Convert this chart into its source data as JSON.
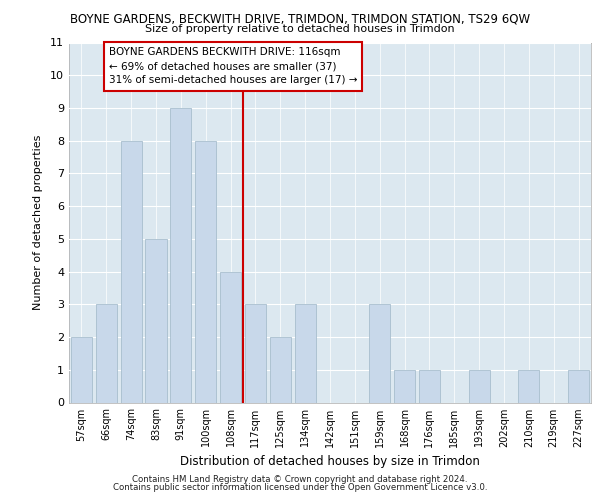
{
  "title1": "BOYNE GARDENS, BECKWITH DRIVE, TRIMDON, TRIMDON STATION, TS29 6QW",
  "title2": "Size of property relative to detached houses in Trimdon",
  "xlabel": "Distribution of detached houses by size in Trimdon",
  "ylabel": "Number of detached properties",
  "categories": [
    "57sqm",
    "66sqm",
    "74sqm",
    "83sqm",
    "91sqm",
    "100sqm",
    "108sqm",
    "117sqm",
    "125sqm",
    "134sqm",
    "142sqm",
    "151sqm",
    "159sqm",
    "168sqm",
    "176sqm",
    "185sqm",
    "193sqm",
    "202sqm",
    "210sqm",
    "219sqm",
    "227sqm"
  ],
  "values": [
    2,
    3,
    8,
    5,
    9,
    8,
    4,
    3,
    2,
    3,
    0,
    0,
    3,
    1,
    1,
    0,
    1,
    0,
    1,
    0,
    1
  ],
  "bar_color": "#c8d8ea",
  "bar_edge_color": "#a8bece",
  "red_line_x": 7,
  "annotation_line1": "BOYNE GARDENS BECKWITH DRIVE: 116sqm",
  "annotation_line2": "← 69% of detached houses are smaller (37)",
  "annotation_line3": "31% of semi-detached houses are larger (17) →",
  "ylim": [
    0,
    11
  ],
  "yticks": [
    0,
    1,
    2,
    3,
    4,
    5,
    6,
    7,
    8,
    9,
    10,
    11
  ],
  "background_color": "#dce8f0",
  "footer1": "Contains HM Land Registry data © Crown copyright and database right 2024.",
  "footer2": "Contains public sector information licensed under the Open Government Licence v3.0."
}
